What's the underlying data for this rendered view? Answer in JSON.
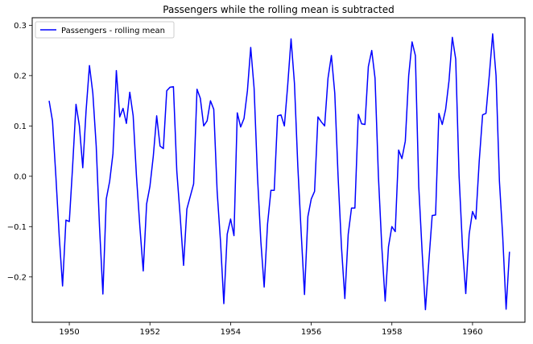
{
  "chart_data": {
    "type": "line",
    "title": "Passengers while the rolling mean is subtracted",
    "xlabel": "",
    "ylabel": "",
    "xlim": [
      1949.08,
      1961.3
    ],
    "ylim": [
      -0.29,
      0.315
    ],
    "grid": false,
    "legend_position": "top-left",
    "x_ticks": [
      1950,
      1952,
      1954,
      1956,
      1958,
      1960
    ],
    "x_tick_labels": [
      "1950",
      "1952",
      "1954",
      "1956",
      "1958",
      "1960"
    ],
    "y_ticks": [
      -0.2,
      -0.1,
      0.0,
      0.1,
      0.2,
      0.3
    ],
    "y_tick_labels": [
      "−0.2",
      "−0.1",
      "0.0",
      "0.1",
      "0.2",
      "0.3"
    ],
    "colors": {
      "series": "#0000ff",
      "axis": "#000000",
      "background": "#ffffff",
      "legend_border": "#cccccc"
    },
    "series": [
      {
        "name": "Passengers - rolling mean",
        "x_start": 1949.5,
        "x_step": 0.08333,
        "values": [
          0.15,
          0.11,
          0.0,
          -0.12,
          -0.218,
          -0.087,
          -0.09,
          0.02,
          0.143,
          0.1,
          0.017,
          0.13,
          0.22,
          0.165,
          0.06,
          -0.1,
          -0.234,
          -0.045,
          -0.01,
          0.045,
          0.21,
          0.118,
          0.135,
          0.105,
          0.167,
          0.12,
          0.0,
          -0.1,
          -0.188,
          -0.055,
          -0.02,
          0.04,
          0.12,
          0.06,
          0.055,
          0.17,
          0.177,
          0.178,
          0.01,
          -0.08,
          -0.177,
          -0.065,
          -0.04,
          -0.015,
          0.173,
          0.155,
          0.1,
          0.11,
          0.15,
          0.133,
          -0.03,
          -0.13,
          -0.253,
          -0.115,
          -0.085,
          -0.118,
          0.126,
          0.098,
          0.115,
          0.17,
          0.256,
          0.175,
          0.0,
          -0.13,
          -0.22,
          -0.095,
          -0.028,
          -0.028,
          0.12,
          0.122,
          0.1,
          0.18,
          0.273,
          0.185,
          0.02,
          -0.11,
          -0.235,
          -0.08,
          -0.045,
          -0.03,
          0.118,
          0.108,
          0.1,
          0.195,
          0.24,
          0.165,
          0.0,
          -0.14,
          -0.243,
          -0.115,
          -0.063,
          -0.063,
          0.123,
          0.104,
          0.103,
          0.218,
          0.25,
          0.195,
          0.0,
          -0.14,
          -0.248,
          -0.14,
          -0.1,
          -0.11,
          0.052,
          0.035,
          0.07,
          0.2,
          0.267,
          0.24,
          -0.02,
          -0.15,
          -0.265,
          -0.17,
          -0.078,
          -0.077,
          0.125,
          0.103,
          0.133,
          0.19,
          0.276,
          0.233,
          0.0,
          -0.14,
          -0.233,
          -0.115,
          -0.07,
          -0.085,
          0.03,
          0.122,
          0.125,
          0.2,
          0.283,
          0.2,
          -0.01,
          -0.12,
          -0.264,
          -0.15
        ]
      }
    ]
  }
}
